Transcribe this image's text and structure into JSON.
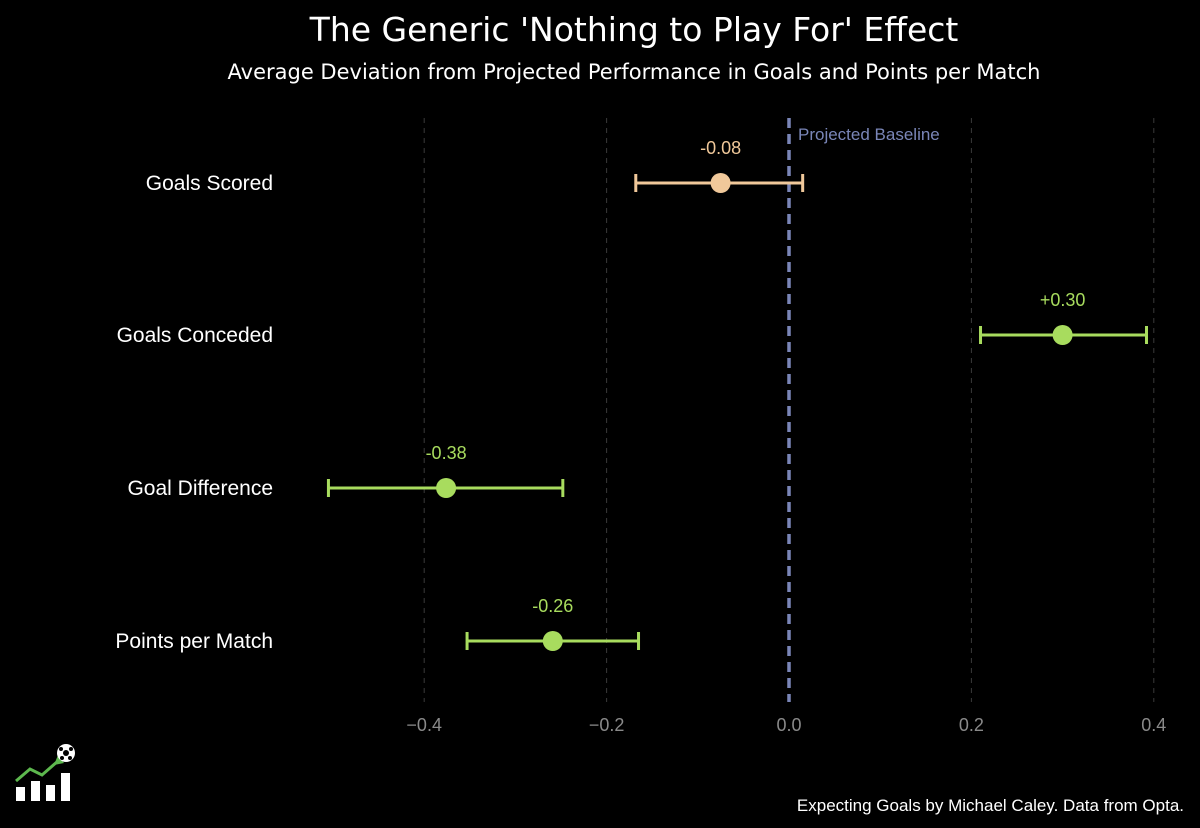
{
  "chart_data": {
    "type": "scatter",
    "title": "The Generic 'Nothing to Play For' Effect",
    "subtitle": "Average Deviation from Projected Performance in Goals and Points per Match",
    "xlim": [
      -0.5,
      0.42
    ],
    "x_ticks": [
      -0.4,
      -0.2,
      0.0,
      0.2,
      0.4
    ],
    "x_tick_labels": [
      "−0.4",
      "−0.2",
      "0.0",
      "0.2",
      "0.4"
    ],
    "grid": "vertical dashed",
    "reference_line": {
      "x": 0.0,
      "label": "Projected Baseline",
      "color": "#7a86b8"
    },
    "categories": [
      "Goals Scored",
      "Goals Conceded",
      "Goal Difference",
      "Points per Match"
    ],
    "points": [
      {
        "category": "Goals Scored",
        "value": -0.075,
        "low": -0.168,
        "high": 0.015,
        "label": "-0.08",
        "color": "#f0c89a"
      },
      {
        "category": "Goals Conceded",
        "value": 0.3,
        "low": 0.21,
        "high": 0.392,
        "label": "+0.30",
        "color": "#a8dc5e"
      },
      {
        "category": "Goal Difference",
        "value": -0.376,
        "low": -0.505,
        "high": -0.248,
        "label": "-0.38",
        "color": "#a8dc5e"
      },
      {
        "category": "Points per Match",
        "value": -0.259,
        "low": -0.353,
        "high": -0.165,
        "label": "-0.26",
        "color": "#a8dc5e"
      }
    ]
  },
  "footer": "Expecting Goals by Michael Caley. Data from Opta."
}
